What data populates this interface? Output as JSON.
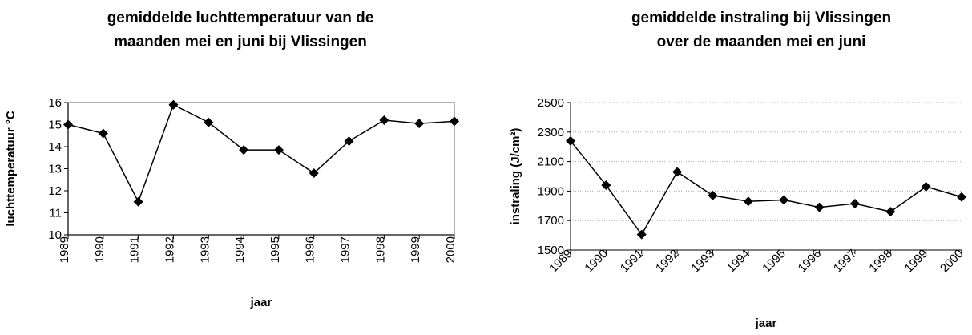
{
  "chart_data": [
    {
      "type": "line",
      "title": [
        "gemiddelde luchttemperatuur van de",
        "maanden mei en juni bij Vlissingen"
      ],
      "x_label": "jaar",
      "y_label": "luchttemperatuur °C",
      "categories": [
        "1989",
        "1990",
        "1991",
        "1992",
        "1993",
        "1994",
        "1995",
        "1996",
        "1997",
        "1998",
        "1999",
        "2000"
      ],
      "series": [
        {
          "color": "#000000",
          "values": [
            15.0,
            14.6,
            11.5,
            15.9,
            15.1,
            13.85,
            13.85,
            12.8,
            14.25,
            15.2,
            15.05,
            15.15
          ]
        }
      ],
      "ylim": [
        10,
        16
      ],
      "yticks": [
        10,
        11,
        12,
        13,
        14,
        15,
        16
      ],
      "grid": false,
      "frame": true,
      "xtick_rotation": -90
    },
    {
      "type": "line",
      "title": [
        "gemiddelde instraling bij Vlissingen",
        "over de maanden mei en juni"
      ],
      "x_label": "jaar",
      "y_label": "instraling (J/cm²)",
      "categories": [
        "1989",
        "1990",
        "1991",
        "1992",
        "1993",
        "1994",
        "1995",
        "1996",
        "1997",
        "1998",
        "1999",
        "2000"
      ],
      "series": [
        {
          "color": "#000000",
          "values": [
            2240,
            1940,
            1605,
            2030,
            1870,
            1830,
            1840,
            1790,
            1815,
            1760,
            1930,
            1860
          ]
        }
      ],
      "ylim": [
        1500,
        2500
      ],
      "yticks": [
        1500,
        1700,
        1900,
        2100,
        2300,
        2500
      ],
      "grid": true,
      "frame": false,
      "xtick_rotation": -45
    }
  ]
}
